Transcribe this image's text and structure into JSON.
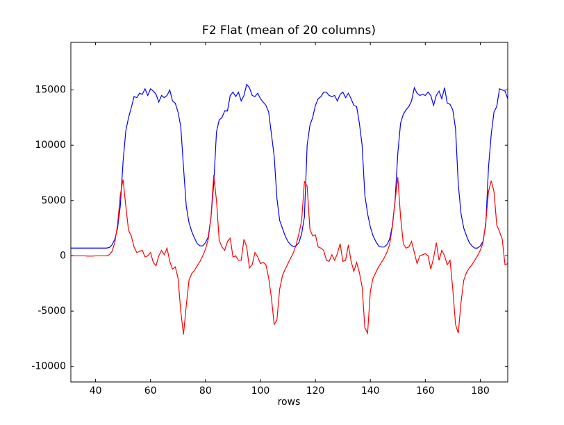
{
  "chart_data": {
    "type": "line",
    "title": "F2 Flat (mean of 20 columns)",
    "xlabel": "rows",
    "x": [
      31,
      32,
      33,
      34,
      35,
      36,
      37,
      38,
      39,
      40,
      41,
      42,
      43,
      44,
      45,
      46,
      47,
      48,
      49,
      50,
      51,
      52,
      53,
      54,
      55,
      56,
      57,
      58,
      59,
      60,
      61,
      62,
      63,
      64,
      65,
      66,
      67,
      68,
      69,
      70,
      71,
      72,
      73,
      74,
      75,
      76,
      77,
      78,
      79,
      80,
      81,
      82,
      83,
      84,
      85,
      86,
      87,
      88,
      89,
      90,
      91,
      92,
      93,
      94,
      95,
      96,
      97,
      98,
      99,
      100,
      101,
      102,
      103,
      104,
      105,
      106,
      107,
      108,
      109,
      110,
      111,
      112,
      113,
      114,
      115,
      116,
      117,
      118,
      119,
      120,
      121,
      122,
      123,
      124,
      125,
      126,
      127,
      128,
      129,
      130,
      131,
      132,
      133,
      134,
      135,
      136,
      137,
      138,
      139,
      140,
      141,
      142,
      143,
      144,
      145,
      146,
      147,
      148,
      149,
      150,
      151,
      152,
      153,
      154,
      155,
      156,
      157,
      158,
      159,
      160,
      161,
      162,
      163,
      164,
      165,
      166,
      167,
      168,
      169,
      170,
      171,
      172,
      173,
      174,
      175,
      176,
      177,
      178,
      179,
      180,
      181,
      182,
      183,
      184,
      185,
      186,
      187,
      188,
      189,
      190
    ],
    "series": [
      {
        "color": "#0000ff",
        "values": [
          700,
          700,
          700,
          700,
          700,
          700,
          700,
          700,
          700,
          700,
          700,
          700,
          700,
          700,
          750,
          1000,
          1500,
          2500,
          4500,
          8500,
          11300,
          12500,
          13400,
          14400,
          14300,
          14700,
          14600,
          15100,
          14500,
          15100,
          14900,
          14600,
          13900,
          14500,
          14300,
          14500,
          15000,
          14000,
          13800,
          13000,
          11700,
          8000,
          4500,
          3000,
          2200,
          1600,
          1100,
          900,
          900,
          1200,
          1700,
          3500,
          6500,
          11200,
          12300,
          12500,
          13100,
          13100,
          14500,
          14800,
          14400,
          14800,
          14000,
          14500,
          15500,
          15200,
          14500,
          14400,
          14700,
          14200,
          13900,
          13600,
          13000,
          11000,
          9000,
          5200,
          3200,
          2500,
          1800,
          1300,
          1000,
          850,
          900,
          1200,
          2000,
          3500,
          10000,
          11800,
          12500,
          13600,
          14200,
          14400,
          14800,
          14800,
          14500,
          14400,
          14500,
          14000,
          14600,
          14800,
          14300,
          14700,
          14200,
          13600,
          13500,
          12000,
          10000,
          5500,
          3800,
          2600,
          1800,
          1300,
          900,
          800,
          800,
          1000,
          1500,
          2700,
          5000,
          9300,
          12000,
          12800,
          13200,
          13500,
          14000,
          15200,
          14700,
          14500,
          14600,
          14500,
          14800,
          14500,
          13600,
          14500,
          14900,
          14200,
          15200,
          13800,
          13700,
          13200,
          11500,
          6500,
          3800,
          2500,
          1800,
          1200,
          900,
          700,
          700,
          900,
          1300,
          2800,
          8000,
          11000,
          13000,
          13500,
          15100,
          15000,
          14900,
          14200
        ]
      },
      {
        "color": "#ff0000",
        "values": [
          0,
          0,
          0,
          0,
          0,
          0,
          -20,
          -20,
          -20,
          0,
          0,
          0,
          0,
          0,
          100,
          400,
          1200,
          2800,
          5500,
          6900,
          4500,
          2300,
          1800,
          800,
          300,
          400,
          500,
          -100,
          0,
          300,
          -600,
          -900,
          0,
          500,
          100,
          700,
          -500,
          -1200,
          -1000,
          -2000,
          -5000,
          -7100,
          -4500,
          -2200,
          -1600,
          -1300,
          -900,
          -500,
          0,
          600,
          1500,
          3500,
          7300,
          5000,
          1400,
          800,
          500,
          1300,
          1600,
          -100,
          0,
          -400,
          -400,
          1500,
          800,
          -1100,
          -800,
          300,
          -100,
          -700,
          -600,
          -800,
          -2000,
          -3800,
          -6200,
          -5800,
          -3000,
          -1800,
          -1200,
          -700,
          -200,
          300,
          1000,
          2000,
          3200,
          6700,
          6300,
          2400,
          1800,
          1900,
          800,
          700,
          500,
          -400,
          -500,
          100,
          -400,
          200,
          1100,
          -500,
          -400,
          1000,
          -500,
          -1400,
          -600,
          -1500,
          -2800,
          -6500,
          -7000,
          -3200,
          -2000,
          -1500,
          -1000,
          -600,
          -200,
          300,
          1000,
          2600,
          5000,
          7100,
          3500,
          1100,
          700,
          800,
          1300,
          300,
          -700,
          0,
          100,
          200,
          0,
          -1200,
          -200,
          1200,
          -400,
          500,
          0,
          -800,
          -400,
          -3000,
          -6200,
          -7000,
          -4200,
          -2200,
          -1500,
          -1100,
          -800,
          -400,
          0,
          500,
          1200,
          3000,
          5800,
          6800,
          5800,
          2800,
          2200,
          1500,
          -800,
          -700
        ]
      }
    ],
    "xlim": [
      31,
      190
    ],
    "ylim": [
      -11400,
      19300
    ],
    "xticks": [
      40,
      60,
      80,
      100,
      120,
      140,
      160,
      180
    ],
    "yticks": [
      -10000,
      -5000,
      0,
      5000,
      10000,
      15000
    ]
  }
}
